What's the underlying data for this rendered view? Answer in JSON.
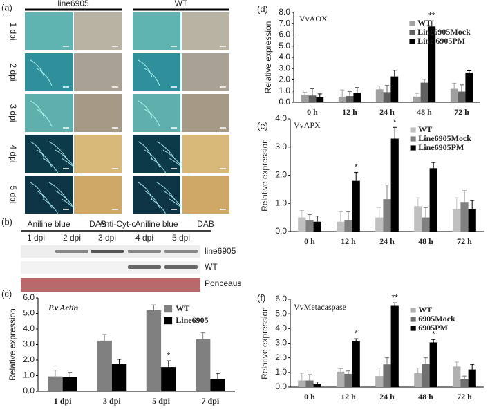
{
  "panel_a": {
    "label": "(a)",
    "column_groups": [
      "line6905",
      "WT"
    ],
    "rows": [
      "1 dpi",
      "2 dpi",
      "3 dpi",
      "4 dpi",
      "5 dpi"
    ],
    "stains": [
      "Aniline blue",
      "DAB",
      "Aniline blue",
      "DAB"
    ]
  },
  "panel_b": {
    "label": "(b)",
    "antibody": "Anti-Cyt-c",
    "lanes": [
      "1 dpi",
      "2 dpi",
      "3 dpi",
      "4 dpi",
      "5 dpi"
    ],
    "rows": [
      "line6905",
      "WT",
      "Ponceaus"
    ]
  },
  "chart_data": [
    {
      "type": "bar",
      "panel_label": "(c)",
      "title": "P.v Actin",
      "ylabel": "Relative expression",
      "categories": [
        "1 dpi",
        "3 dpi",
        "5 dpi",
        "7 dpi"
      ],
      "series": [
        {
          "name": "WT",
          "color": "#808080",
          "values": [
            0.95,
            3.25,
            5.2,
            3.35
          ],
          "errors": [
            0.4,
            0.4,
            0.35,
            0.4
          ],
          "significance": [
            null,
            null,
            null,
            null
          ]
        },
        {
          "name": "Line6905",
          "color": "#000000",
          "values": [
            0.9,
            1.75,
            1.55,
            0.8
          ],
          "errors": [
            0.3,
            0.3,
            0.4,
            0.35
          ],
          "significance": [
            null,
            null,
            "*",
            null
          ]
        }
      ],
      "ylim": [
        0,
        6
      ],
      "yticks": [
        {
          "value": 0,
          "label": "0.0"
        },
        {
          "value": 1,
          "label": "1.0"
        },
        {
          "value": 2,
          "label": "2.0"
        },
        {
          "value": 3,
          "label": "3.0"
        },
        {
          "value": 4,
          "label": "4.0"
        },
        {
          "value": 5,
          "label": "5.0"
        },
        {
          "value": 6,
          "label": "6.0"
        }
      ],
      "legend": "upper right"
    },
    {
      "type": "bar",
      "panel_label": "(d)",
      "title": "VvAOX",
      "ylabel": "Relative expression",
      "categories": [
        "0 h",
        "12 h",
        "24 h",
        "48 h",
        "72 h"
      ],
      "series": [
        {
          "name": "WT",
          "color": "#a0a0a0",
          "values": [
            0.65,
            0.5,
            1.15,
            0.5,
            1.2
          ],
          "errors": [
            0.25,
            0.6,
            0.3,
            0.3,
            0.5
          ],
          "significance": [
            null,
            null,
            null,
            null,
            null
          ]
        },
        {
          "name": "Line6905Mock",
          "color": "#606060",
          "values": [
            0.6,
            0.55,
            0.9,
            1.75,
            0.95
          ],
          "errors": [
            0.6,
            0.4,
            0.6,
            0.3,
            0.6
          ],
          "significance": [
            null,
            null,
            null,
            null,
            null
          ]
        },
        {
          "name": "Line 6905PM",
          "color": "#000000",
          "values": [
            0.45,
            0.85,
            2.3,
            6.75,
            2.65
          ],
          "errors": [
            0.3,
            0.45,
            0.55,
            0.5,
            0.15
          ],
          "significance": [
            null,
            null,
            null,
            "**",
            null
          ]
        }
      ],
      "ylim": [
        0,
        8
      ],
      "yticks": [
        {
          "value": 0,
          "label": "0.0"
        },
        {
          "value": 1,
          "label": "1.0"
        },
        {
          "value": 2,
          "label": "2.0"
        },
        {
          "value": 3,
          "label": "3.0"
        },
        {
          "value": 4,
          "label": "4.0"
        },
        {
          "value": 5,
          "label": "5.0"
        },
        {
          "value": 6,
          "label": "6.0"
        },
        {
          "value": 7,
          "label": "7.0"
        },
        {
          "value": 8,
          "label": "8.0"
        }
      ],
      "legend": "upper right"
    },
    {
      "type": "bar",
      "panel_label": "(e)",
      "title": "VvAPX",
      "ylabel": "Relative expression",
      "categories": [
        "0 h",
        "12 h",
        "24 h",
        "48 h",
        "72 h"
      ],
      "series": [
        {
          "name": "WT",
          "color": "#c0c0c0",
          "values": [
            0.5,
            0.35,
            0.5,
            0.9,
            0.8
          ],
          "errors": [
            0.25,
            0.35,
            0.35,
            0.3,
            0.4
          ],
          "significance": [
            null,
            null,
            null,
            null,
            null
          ]
        },
        {
          "name": "Line6905Mock",
          "color": "#808080",
          "values": [
            0.4,
            0.4,
            1.15,
            0.5,
            1.05
          ],
          "errors": [
            0.2,
            0.3,
            0.5,
            0.35,
            0.4
          ],
          "significance": [
            null,
            null,
            null,
            null,
            null
          ]
        },
        {
          "name": "Line6905PM",
          "color": "#000000",
          "values": [
            0.35,
            1.8,
            3.3,
            2.25,
            0.8
          ],
          "errors": [
            0.2,
            0.3,
            0.4,
            0.2,
            0.3
          ],
          "significance": [
            null,
            "*",
            "*",
            null,
            null
          ]
        }
      ],
      "ylim": [
        0,
        4
      ],
      "yticks": [
        {
          "value": 0,
          "label": "0.0"
        },
        {
          "value": 1,
          "label": "1.0"
        },
        {
          "value": 2,
          "label": "2.0"
        },
        {
          "value": 3,
          "label": "3.0"
        },
        {
          "value": 4,
          "label": "4.0"
        }
      ],
      "legend": "upper right"
    },
    {
      "type": "bar",
      "panel_label": "(f)",
      "title": "VvMetacaspase",
      "ylabel": "Relative expression",
      "categories": [
        "0 h",
        "12 h",
        "24 h",
        "48 h",
        "72 h"
      ],
      "series": [
        {
          "name": "WT",
          "color": "#b0b0b0",
          "values": [
            0.45,
            1.05,
            0.75,
            0.95,
            1.4
          ],
          "errors": [
            0.5,
            0.2,
            0.55,
            0.35,
            0.3
          ],
          "significance": [
            null,
            null,
            null,
            null,
            null
          ]
        },
        {
          "name": "6905Mock",
          "color": "#707070",
          "values": [
            0.45,
            0.9,
            1.55,
            1.6,
            0.55
          ],
          "errors": [
            0.4,
            0.2,
            0.45,
            0.4,
            0.2
          ],
          "significance": [
            null,
            null,
            null,
            null,
            null
          ]
        },
        {
          "name": "6905PM",
          "color": "#000000",
          "values": [
            0.2,
            3.15,
            5.55,
            3.05,
            1.2
          ],
          "errors": [
            0.15,
            0.15,
            0.2,
            0.2,
            0.35
          ],
          "significance": [
            null,
            "*",
            "**",
            "*",
            null
          ]
        }
      ],
      "ylim": [
        0,
        6
      ],
      "yticks": [
        {
          "value": 0,
          "label": "0.0"
        },
        {
          "value": 1,
          "label": "1.0"
        },
        {
          "value": 2,
          "label": "2.0"
        },
        {
          "value": 3,
          "label": "3.0"
        },
        {
          "value": 4,
          "label": "4.0"
        },
        {
          "value": 5,
          "label": "5.0"
        },
        {
          "value": 6,
          "label": "6.0"
        }
      ],
      "legend": "upper right"
    }
  ]
}
